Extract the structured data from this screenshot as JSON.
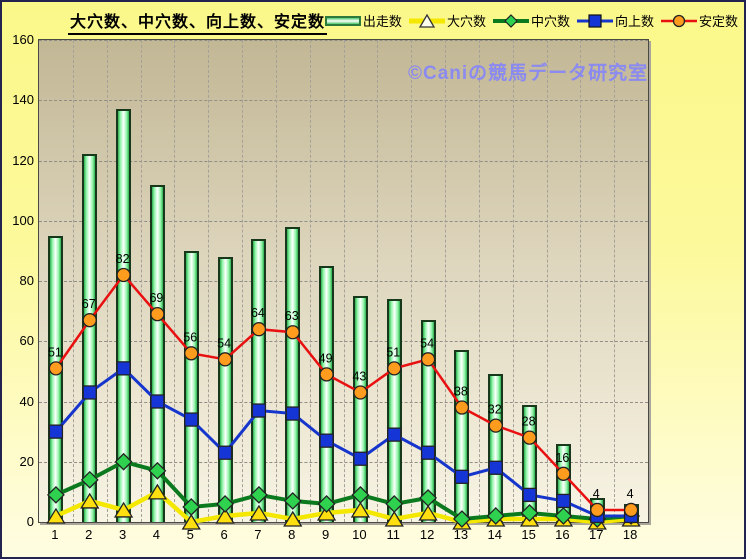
{
  "title": "大穴数、中穴数、向上数、安定数",
  "watermark": "©Caniの競馬データ研究室",
  "chart_data": {
    "type": "bar+line combo",
    "title": "大穴数、中穴数、向上数、安定数",
    "categories": [
      "1",
      "2",
      "3",
      "4",
      "5",
      "6",
      "7",
      "8",
      "9",
      "10",
      "11",
      "12",
      "13",
      "14",
      "15",
      "16",
      "17",
      "18"
    ],
    "ylim": [
      0,
      160
    ],
    "ytick_step": 20,
    "grid": true,
    "legend_position": "top-right",
    "series": [
      {
        "id": "starts",
        "name": "出走数",
        "type": "bar",
        "color": "#4cc96a",
        "border_color": "#17381b",
        "values": [
          95,
          122,
          137,
          112,
          90,
          88,
          94,
          98,
          85,
          75,
          74,
          67,
          57,
          49,
          39,
          26,
          8,
          6
        ]
      },
      {
        "id": "big-upset",
        "name": "大穴数",
        "type": "line",
        "marker": "triangle",
        "line_color": "#f5e800",
        "marker_color": "#ffdf0f",
        "line_width": 4.5,
        "values": [
          2,
          7,
          4,
          10,
          0,
          2,
          3,
          1,
          3,
          4,
          1,
          3,
          0,
          1,
          1,
          1,
          0,
          1
        ]
      },
      {
        "id": "mid-upset",
        "name": "中穴数",
        "type": "line",
        "marker": "diamond",
        "line_color": "#0b7a1e",
        "marker_color": "#2ed24e",
        "line_width": 4,
        "values": [
          9,
          14,
          20,
          17,
          5,
          6,
          9,
          7,
          6,
          9,
          6,
          8,
          1,
          2,
          3,
          2,
          1,
          2
        ]
      },
      {
        "id": "improvement",
        "name": "向上数",
        "type": "line",
        "marker": "square",
        "line_color": "#1535cc",
        "marker_color": "#1535d6",
        "line_width": 3,
        "values": [
          30,
          43,
          51,
          40,
          34,
          23,
          37,
          36,
          27,
          21,
          29,
          23,
          15,
          18,
          9,
          7,
          2,
          2
        ]
      },
      {
        "id": "stability",
        "name": "安定数",
        "type": "line",
        "marker": "circle",
        "line_color": "#e81010",
        "marker_color": "#ff9c1e",
        "line_width": 2.5,
        "data_labels": true,
        "values": [
          51,
          67,
          82,
          69,
          56,
          54,
          64,
          63,
          49,
          43,
          51,
          54,
          38,
          32,
          28,
          16,
          4,
          4
        ]
      }
    ]
  }
}
